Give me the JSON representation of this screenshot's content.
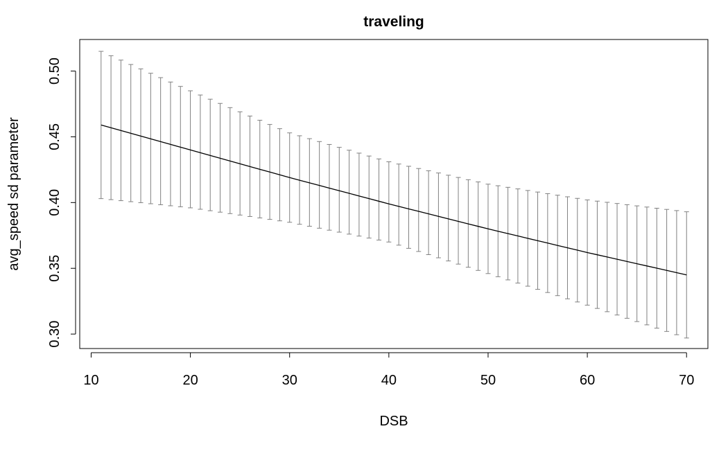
{
  "chart_data": {
    "type": "line",
    "title": "traveling",
    "xlabel": "DSB",
    "ylabel": "avg_speed sd parameter",
    "xlim": [
      8.85,
      72.15
    ],
    "ylim": [
      0.289,
      0.524
    ],
    "x_ticks": [
      10,
      20,
      30,
      40,
      50,
      60,
      70
    ],
    "y_ticks": [
      0.3,
      0.35,
      0.4,
      0.45,
      0.5
    ],
    "x_tick_labels": [
      "10",
      "20",
      "30",
      "40",
      "50",
      "60",
      "70"
    ],
    "y_tick_labels": [
      "0.30",
      "0.35",
      "0.40",
      "0.45",
      "0.50"
    ],
    "grid": false,
    "legend": "none",
    "x_range": [
      11,
      70
    ],
    "series": [
      {
        "line_color": "#000000",
        "errorbar_color": "#808080",
        "points": [
          {
            "x": 11,
            "y": 0.459,
            "lower": 0.403,
            "upper": 0.515
          },
          {
            "x": 20,
            "y": 0.44,
            "lower": 0.396,
            "upper": 0.485
          },
          {
            "x": 30,
            "y": 0.419,
            "lower": 0.385,
            "upper": 0.453
          },
          {
            "x": 40,
            "y": 0.399,
            "lower": 0.37,
            "upper": 0.431
          },
          {
            "x": 50,
            "y": 0.38,
            "lower": 0.346,
            "upper": 0.414
          },
          {
            "x": 60,
            "y": 0.362,
            "lower": 0.322,
            "upper": 0.402
          },
          {
            "x": 70,
            "y": 0.345,
            "lower": 0.297,
            "upper": 0.393
          }
        ]
      }
    ]
  }
}
